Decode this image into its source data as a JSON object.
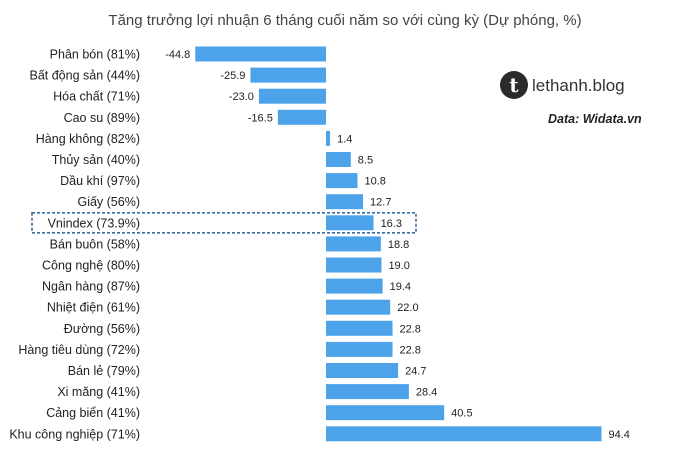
{
  "chart_data": {
    "type": "bar",
    "orientation": "horizontal",
    "title": "Tăng trưởng lợi nhuận 6 tháng cuối năm so với cùng kỳ (Dự phóng, %)",
    "categories": [
      "Phân bón (81%)",
      "Bất động sản (44%)",
      "Hóa chất (71%)",
      "Cao su (89%)",
      "Hàng không (82%)",
      "Thủy sản (40%)",
      "Dầu khí (97%)",
      "Giấy (56%)",
      "Vnindex (73.9%)",
      "Bán buôn (58%)",
      "Công nghệ (80%)",
      "Ngân hàng (87%)",
      "Nhiệt điện (61%)",
      "Đường (56%)",
      "Hàng tiêu dùng (72%)",
      "Bán lẻ (79%)",
      "Xi măng (41%)",
      "Cảng biển (41%)",
      "Khu công nghiệp (71%)"
    ],
    "values": [
      -44.8,
      -25.9,
      -23.0,
      -16.5,
      1.4,
      8.5,
      10.8,
      12.7,
      16.3,
      18.8,
      19.0,
      19.4,
      22.0,
      22.8,
      22.8,
      24.7,
      28.4,
      40.5,
      94.4
    ],
    "value_labels": [
      "-44.8",
      "-25.9",
      "-23.0",
      "-16.5",
      "1.4",
      "8.5",
      "10.8",
      "12.7",
      "16.3",
      "18.8",
      "19.0",
      "19.4",
      "22.0",
      "22.8",
      "22.8",
      "24.7",
      "28.4",
      "40.5",
      "94.4"
    ],
    "highlighted_category": "Vnindex (73.9%)",
    "xlim": [
      -44.8,
      94.4
    ],
    "grid": false,
    "colors": {
      "bar": "#4da3ea",
      "highlight_border": "#3a6ea5",
      "text": "#222222",
      "logo_circle": "#2b2b2b"
    }
  },
  "brand": {
    "logo_icon": "letter-t-circle-icon",
    "logo_letter": "t",
    "name": "lethanh.blog"
  },
  "source": "Data: Widata.vn"
}
